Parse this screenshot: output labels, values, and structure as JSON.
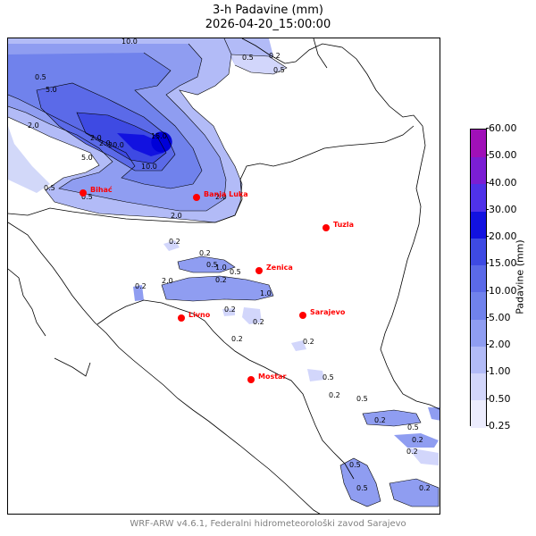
{
  "title": {
    "line1": "3-h Padavine (mm)",
    "line2": "2026-04-20_15:00:00"
  },
  "cities": [
    {
      "name": "Bihać"
    },
    {
      "name": "Banja Luka"
    },
    {
      "name": "Tuzla"
    },
    {
      "name": "Zenica"
    },
    {
      "name": "Sarajevo"
    },
    {
      "name": "Livno"
    },
    {
      "name": "Mostar"
    }
  ],
  "contour_labels": [
    "0.5",
    "5.0",
    "10.0",
    "2.0",
    "0.2",
    "0.5",
    "0.5",
    "2.0",
    "2.0",
    "15.0",
    "20.0",
    "10.0",
    "5.0",
    "0.5",
    "0.5",
    "2.0",
    "2.0",
    "0.2",
    "0.2",
    "0.5",
    "1.0",
    "0.5",
    "2.0",
    "1.0",
    "0.2",
    "0.2",
    "0.2",
    "0.2",
    "0.2",
    "0.2",
    "0.5",
    "0.2",
    "0.5",
    "0.2",
    "0.5",
    "0.2",
    "0.2",
    "0.5",
    "0.2",
    "0.5"
  ],
  "colorbar": {
    "label": "Padavine (mm)",
    "levels": [
      "0.25",
      "0.50",
      "1.00",
      "2.00",
      "5.00",
      "10.00",
      "15.00",
      "20.00",
      "30.00",
      "40.00",
      "50.00",
      "60.00"
    ],
    "colors": [
      "#ececfd",
      "#d2d6fb",
      "#b2bbf7",
      "#8f9df1",
      "#7082ec",
      "#5b6ae8",
      "#3e4ae3",
      "#1212e0",
      "#4f32e9",
      "#7b1ed4",
      "#a010b8"
    ]
  },
  "footer": "WRF-ARW v4.6.1, Federalni hidrometeorološki zavod Sarajevo"
}
